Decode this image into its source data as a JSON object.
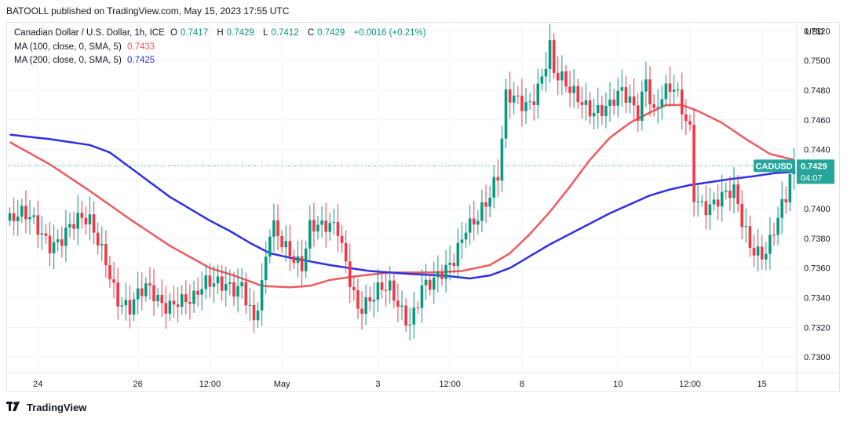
{
  "header": {
    "text": "BATOOLL published on TradingView.com, May 15, 2023 17:55 UTC"
  },
  "legend": {
    "symbol": "Canadian Dollar / U.S. Dollar, 1h, ICE",
    "ohlc": {
      "o_label": "O",
      "o": "0.7417",
      "h_label": "H",
      "h": "0.7429",
      "l_label": "L",
      "l": "0.7412",
      "c_label": "C",
      "c": "0.7429",
      "change": "+0.0016 (+0.21%)"
    },
    "ma100": {
      "label": "MA (100, close, 0, SMA, 5)",
      "value": "0.7433",
      "color": "#f05a5f"
    },
    "ma200": {
      "label": "MA (200, close, 0, SMA, 5)",
      "value": "0.7425",
      "color": "#2f2ee8"
    }
  },
  "footer": {
    "brand": "TradingView"
  },
  "colors": {
    "up": "#089981",
    "down": "#f23645",
    "price_tag": "#26a69a",
    "grid": "#f0f3fa"
  },
  "chart_data": {
    "type": "candlestick",
    "currency": "USD",
    "ylim": [
      0.729,
      0.7525
    ],
    "y_ticks": [
      0.73,
      0.732,
      0.734,
      0.736,
      0.738,
      0.74,
      0.742,
      0.744,
      0.746,
      0.748,
      0.75,
      0.752
    ],
    "y_tick_labels": [
      "0.7300",
      "0.7320",
      "0.7340",
      "0.7360",
      "0.7380",
      "0.7400",
      "0.7420",
      "0.7440",
      "0.7460",
      "0.7480",
      "0.7500",
      "0.7520"
    ],
    "x_labels": [
      {
        "label": "24",
        "bar": 7
      },
      {
        "label": "26",
        "bar": 32
      },
      {
        "label": "12:00",
        "bar": 50
      },
      {
        "label": "May",
        "bar": 68
      },
      {
        "label": "3",
        "bar": 92
      },
      {
        "label": "12:00",
        "bar": 110
      },
      {
        "label": "8",
        "bar": 128
      },
      {
        "label": "10",
        "bar": 152
      },
      {
        "label": "12:00",
        "bar": 170
      },
      {
        "label": "15",
        "bar": 188
      }
    ],
    "bar_count": 197,
    "price_keypoints": [
      [
        0,
        0.7392
      ],
      [
        5,
        0.7388
      ],
      [
        10,
        0.7382
      ],
      [
        15,
        0.7388
      ],
      [
        20,
        0.7385
      ],
      [
        24,
        0.737
      ],
      [
        27,
        0.7345
      ],
      [
        30,
        0.7332
      ],
      [
        34,
        0.734
      ],
      [
        38,
        0.7338
      ],
      [
        42,
        0.7345
      ],
      [
        46,
        0.7335
      ],
      [
        50,
        0.7345
      ],
      [
        54,
        0.7355
      ],
      [
        58,
        0.7352
      ],
      [
        60,
        0.733
      ],
      [
        61,
        0.7318
      ],
      [
        63,
        0.734
      ],
      [
        65,
        0.738
      ],
      [
        66,
        0.7385
      ],
      [
        70,
        0.7378
      ],
      [
        73,
        0.7365
      ],
      [
        75,
        0.7385
      ],
      [
        78,
        0.738
      ],
      [
        82,
        0.7388
      ],
      [
        85,
        0.736
      ],
      [
        87,
        0.7338
      ],
      [
        90,
        0.7335
      ],
      [
        95,
        0.7342
      ],
      [
        100,
        0.733
      ],
      [
        103,
        0.735
      ],
      [
        106,
        0.7345
      ],
      [
        109,
        0.7352
      ],
      [
        111,
        0.7365
      ],
      [
        114,
        0.7395
      ],
      [
        117,
        0.74
      ],
      [
        120,
        0.7405
      ],
      [
        122,
        0.7415
      ],
      [
        123,
        0.744
      ],
      [
        124,
        0.747
      ],
      [
        126,
        0.7475
      ],
      [
        130,
        0.7478
      ],
      [
        133,
        0.749
      ],
      [
        135,
        0.7505
      ],
      [
        136,
        0.7485
      ],
      [
        139,
        0.7478
      ],
      [
        143,
        0.7478
      ],
      [
        147,
        0.747
      ],
      [
        150,
        0.7465
      ],
      [
        153,
        0.7472
      ],
      [
        157,
        0.7468
      ],
      [
        159,
        0.7495
      ],
      [
        161,
        0.747
      ],
      [
        163,
        0.7478
      ],
      [
        166,
        0.7475
      ],
      [
        168,
        0.746
      ],
      [
        170,
        0.745
      ],
      [
        171,
        0.741
      ],
      [
        173,
        0.7408
      ],
      [
        177,
        0.741
      ],
      [
        181,
        0.7405
      ],
      [
        183,
        0.7385
      ],
      [
        185,
        0.7373
      ],
      [
        188,
        0.7375
      ],
      [
        190,
        0.7385
      ],
      [
        192,
        0.7398
      ],
      [
        194,
        0.7405
      ],
      [
        196,
        0.7429
      ]
    ],
    "ma100_keypoints": [
      [
        0,
        0.7445
      ],
      [
        10,
        0.743
      ],
      [
        20,
        0.7412
      ],
      [
        30,
        0.7393
      ],
      [
        40,
        0.7375
      ],
      [
        50,
        0.736
      ],
      [
        56,
        0.7355
      ],
      [
        63,
        0.7348
      ],
      [
        70,
        0.7347
      ],
      [
        75,
        0.7348
      ],
      [
        80,
        0.7352
      ],
      [
        88,
        0.7355
      ],
      [
        95,
        0.7357
      ],
      [
        105,
        0.7357
      ],
      [
        113,
        0.7358
      ],
      [
        120,
        0.7362
      ],
      [
        125,
        0.737
      ],
      [
        130,
        0.7383
      ],
      [
        135,
        0.7398
      ],
      [
        140,
        0.7415
      ],
      [
        145,
        0.7433
      ],
      [
        150,
        0.7448
      ],
      [
        155,
        0.7458
      ],
      [
        160,
        0.7465
      ],
      [
        164,
        0.747
      ],
      [
        168,
        0.747
      ],
      [
        172,
        0.7466
      ],
      [
        178,
        0.7458
      ],
      [
        184,
        0.7447
      ],
      [
        190,
        0.7437
      ],
      [
        196,
        0.7433
      ]
    ],
    "ma200_keypoints": [
      [
        0,
        0.745
      ],
      [
        10,
        0.7447
      ],
      [
        20,
        0.7443
      ],
      [
        25,
        0.7438
      ],
      [
        30,
        0.7428
      ],
      [
        35,
        0.7418
      ],
      [
        40,
        0.7408
      ],
      [
        45,
        0.74
      ],
      [
        50,
        0.7392
      ],
      [
        55,
        0.7385
      ],
      [
        60,
        0.7377
      ],
      [
        65,
        0.737
      ],
      [
        70,
        0.7367
      ],
      [
        80,
        0.7362
      ],
      [
        90,
        0.7358
      ],
      [
        100,
        0.7356
      ],
      [
        108,
        0.7355
      ],
      [
        115,
        0.7353
      ],
      [
        120,
        0.7355
      ],
      [
        125,
        0.736
      ],
      [
        130,
        0.7368
      ],
      [
        135,
        0.7376
      ],
      [
        140,
        0.7383
      ],
      [
        145,
        0.739
      ],
      [
        150,
        0.7397
      ],
      [
        155,
        0.7403
      ],
      [
        160,
        0.7409
      ],
      [
        165,
        0.7413
      ],
      [
        170,
        0.7416
      ],
      [
        175,
        0.7418
      ],
      [
        180,
        0.742
      ],
      [
        186,
        0.7422
      ],
      [
        191,
        0.7424
      ],
      [
        196,
        0.7425
      ]
    ],
    "last_price": {
      "label": "CADUSD",
      "price": "0.7429",
      "countdown": "04:07",
      "value": 0.7429
    }
  }
}
